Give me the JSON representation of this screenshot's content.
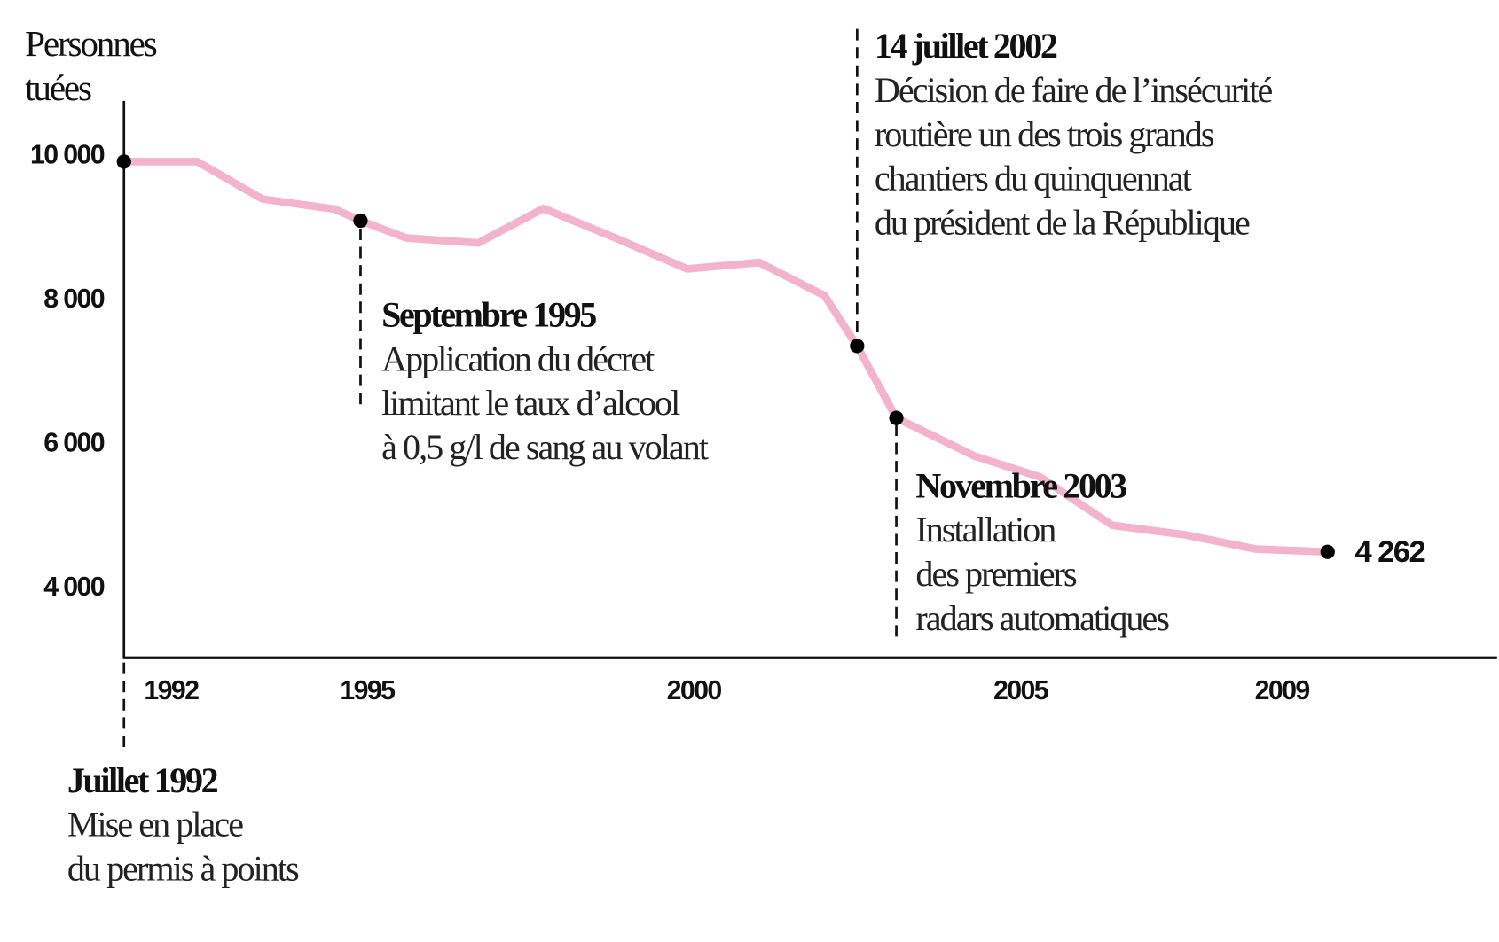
{
  "chart_data": {
    "type": "line",
    "ylabel": [
      "Personnes",
      "tuées"
    ],
    "xlabel": "",
    "ylim": [
      3000,
      10700
    ],
    "xlim": [
      1991.3,
      2012.3
    ],
    "yticks": [
      {
        "value": 10000,
        "label": "10 000"
      },
      {
        "value": 8000,
        "label": "8 000"
      },
      {
        "value": 6000,
        "label": "6 000"
      },
      {
        "value": 4000,
        "label": "4 000"
      }
    ],
    "xticks": [
      {
        "value": 1992,
        "label": "1992"
      },
      {
        "value": 1995,
        "label": "1995"
      },
      {
        "value": 2000,
        "label": "2000"
      },
      {
        "value": 2005,
        "label": "2005"
      },
      {
        "value": 2009,
        "label": "2009"
      }
    ],
    "series": [
      {
        "name": "Personnes tuées",
        "color": "#f2b3cb",
        "x": [
          1991.3,
          1992.4,
          1993.4,
          1994.5,
          1994.9,
          1995.6,
          1996.7,
          1997.7,
          1998.8,
          1999.9,
          2001.0,
          2002.0,
          2002.5,
          2003.1,
          2004.3,
          2005.3,
          2006.4,
          2007.5,
          2008.6,
          2009.7
        ],
        "values": [
          9890,
          9890,
          9370,
          9230,
          9070,
          8830,
          8760,
          9240,
          8830,
          8400,
          8490,
          8030,
          7330,
          6330,
          5800,
          5510,
          4840,
          4710,
          4510,
          4470
        ]
      }
    ],
    "end_label": "4 262",
    "annotations": [
      {
        "title": "Juillet 1992",
        "lines": [
          "Mise en place",
          "du permis à points"
        ]
      },
      {
        "title": "Septembre 1995",
        "lines": [
          "Application du décret",
          "limitant le taux d’alcool",
          "à 0,5 g/l de sang au volant"
        ]
      },
      {
        "title": "14 juillet 2002",
        "lines": [
          "Décision de faire de l’insécurité",
          "routière un des trois grands",
          "chantiers du quinquennat",
          "du président de la République"
        ]
      },
      {
        "title": "Novembre 2003",
        "lines": [
          "Installation",
          "des premiers",
          "radars automatiques"
        ]
      }
    ]
  }
}
